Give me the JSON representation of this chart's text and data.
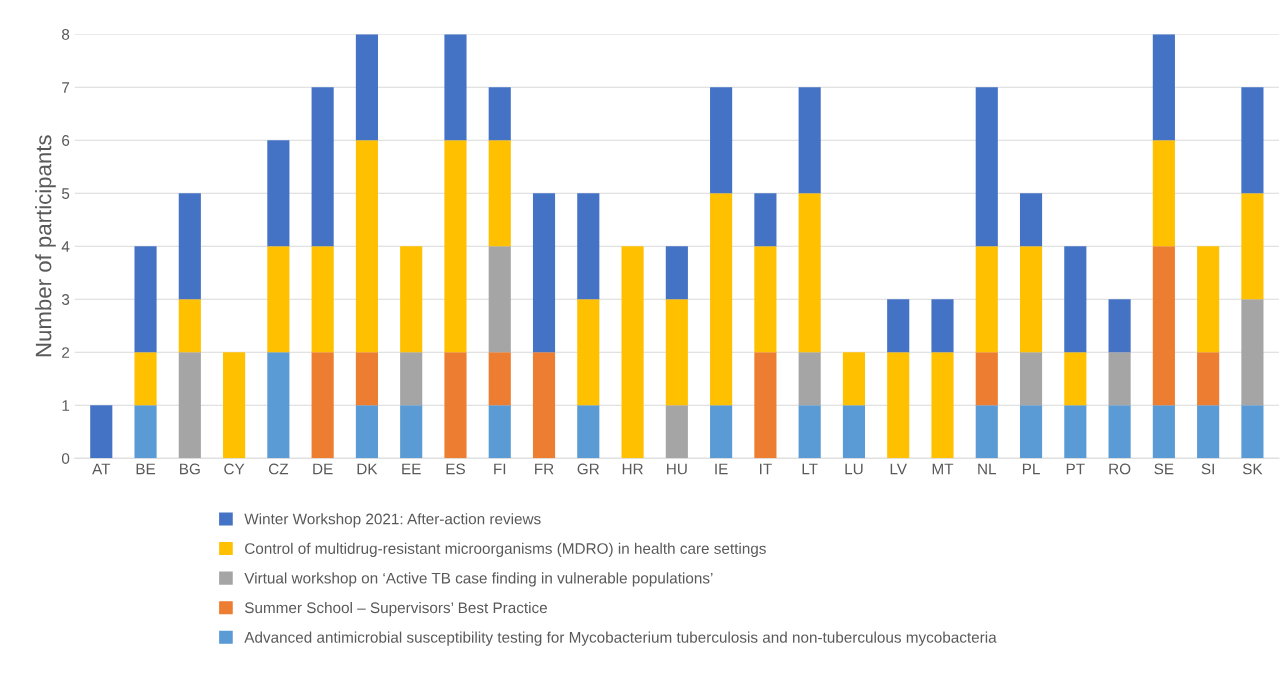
{
  "chart_data": {
    "type": "bar",
    "stacked": true,
    "ylabel": "Number of participants",
    "categories": [
      "AT",
      "BE",
      "BG",
      "CY",
      "CZ",
      "DE",
      "DK",
      "EE",
      "ES",
      "FI",
      "FR",
      "GR",
      "HR",
      "HU",
      "IE",
      "IT",
      "LT",
      "LU",
      "LV",
      "MT",
      "NL",
      "PL",
      "PT",
      "RO",
      "SE",
      "SI",
      "SK"
    ],
    "series": [
      {
        "name": "Advanced antimicrobial susceptibility testing for Mycobacterium tuberculosis and non-tuberculous mycobacteria",
        "color": "#5b9bd5",
        "values": [
          0,
          1,
          0,
          0,
          2,
          0,
          1,
          1,
          0,
          1,
          0,
          1,
          0,
          0,
          1,
          0,
          1,
          1,
          0,
          0,
          1,
          1,
          1,
          1,
          1,
          1,
          1
        ]
      },
      {
        "name": "Summer School – Supervisors’ Best Practice",
        "color": "#ed7d31",
        "values": [
          0,
          0,
          0,
          0,
          0,
          2,
          1,
          0,
          2,
          1,
          2,
          0,
          0,
          0,
          0,
          2,
          0,
          0,
          0,
          0,
          1,
          0,
          0,
          0,
          3,
          1,
          0
        ]
      },
      {
        "name": "Virtual workshop on ‘Active TB case finding in vulnerable populations’",
        "color": "#a5a5a5",
        "values": [
          0,
          0,
          2,
          0,
          0,
          0,
          0,
          1,
          0,
          2,
          0,
          0,
          0,
          1,
          0,
          0,
          1,
          0,
          0,
          0,
          0,
          1,
          0,
          1,
          0,
          0,
          2
        ]
      },
      {
        "name": "Control of multidrug-resistant microorganisms (MDRO) in health care settings",
        "color": "#ffc000",
        "values": [
          0,
          1,
          1,
          2,
          2,
          2,
          4,
          2,
          4,
          2,
          0,
          2,
          4,
          2,
          4,
          2,
          3,
          1,
          2,
          2,
          2,
          2,
          1,
          0,
          2,
          2,
          2
        ]
      },
      {
        "name": "Winter Workshop 2021: After-action reviews",
        "color": "#4472c4",
        "values": [
          1,
          2,
          2,
          0,
          2,
          3,
          2,
          0,
          2,
          1,
          3,
          2,
          0,
          1,
          2,
          1,
          2,
          0,
          1,
          1,
          3,
          1,
          2,
          1,
          2,
          0,
          2
        ]
      }
    ],
    "ylim": [
      0,
      8
    ],
    "yticks": [
      0,
      1,
      2,
      3,
      4,
      5,
      6,
      7,
      8
    ],
    "grid": "y",
    "legend": "bottom"
  }
}
